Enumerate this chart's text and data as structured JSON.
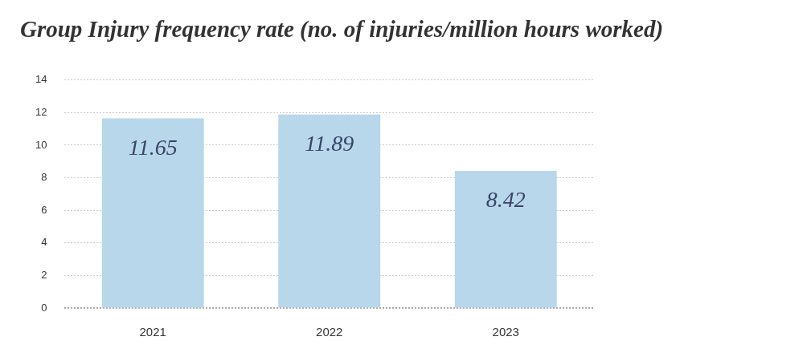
{
  "chart_data": {
    "type": "bar",
    "title": "Group Injury frequency rate (no. of injuries/million hours worked)",
    "categories": [
      "2021",
      "2022",
      "2023"
    ],
    "values": [
      11.65,
      11.89,
      8.42
    ],
    "color": "#b8d7ea",
    "ylim": [
      0,
      14
    ],
    "yticks": [
      0,
      2,
      4,
      6,
      8,
      10,
      12,
      14
    ],
    "grid": "y",
    "data_labels": true,
    "legend": false
  }
}
